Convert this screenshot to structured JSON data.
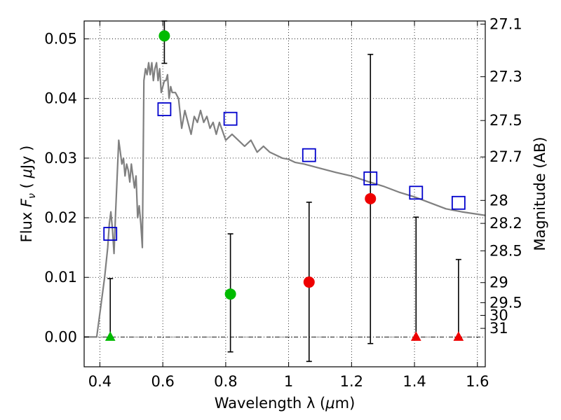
{
  "chart_data": {
    "type": "scatter",
    "xlabel": "Wavelength  λ (μm)",
    "ylabel": "Flux  F_ν  ( μJy )",
    "y2label": "Magnitude (AB)",
    "xlim": [
      0.35,
      1.625
    ],
    "ylim": [
      -0.005,
      0.053
    ],
    "grid": true,
    "x_ticks": [
      "0.4",
      "0.6",
      "0.8",
      "1",
      "1.2",
      "1.4",
      "1.6"
    ],
    "x_tick_values": [
      0.4,
      0.6,
      0.8,
      1.0,
      1.2,
      1.4,
      1.6
    ],
    "y_ticks": [
      "0.00",
      "0.01",
      "0.02",
      "0.03",
      "0.04",
      "0.05"
    ],
    "y_tick_values": [
      0.0,
      0.01,
      0.02,
      0.03,
      0.04,
      0.05
    ],
    "y2_ticks": [
      "27.1",
      "27.3",
      "27.5",
      "27.7",
      "28",
      "28.2",
      "28.5",
      "29",
      "29.5",
      "30",
      "31"
    ],
    "y2_tick_values": [
      27.1,
      27.3,
      27.5,
      27.7,
      28.0,
      28.2,
      28.5,
      29.0,
      29.5,
      30.0,
      31.0
    ],
    "colors": {
      "template": "#808080",
      "model_box": "#0000cc",
      "green": "#00bb00",
      "red": "#ee0000",
      "errorbar": "#000000",
      "zero_line": "#000000"
    },
    "template_sed": {
      "name": "",
      "x": [
        0.35,
        0.39,
        0.395,
        0.405,
        0.415,
        0.425,
        0.43,
        0.435,
        0.44,
        0.445,
        0.45,
        0.455,
        0.46,
        0.465,
        0.47,
        0.475,
        0.48,
        0.485,
        0.49,
        0.495,
        0.5,
        0.505,
        0.51,
        0.515,
        0.52,
        0.525,
        0.53,
        0.535,
        0.54,
        0.545,
        0.55,
        0.555,
        0.56,
        0.565,
        0.57,
        0.575,
        0.58,
        0.585,
        0.59,
        0.595,
        0.6,
        0.605,
        0.61,
        0.615,
        0.62,
        0.625,
        0.63,
        0.64,
        0.65,
        0.66,
        0.67,
        0.68,
        0.69,
        0.7,
        0.71,
        0.72,
        0.73,
        0.74,
        0.75,
        0.76,
        0.77,
        0.78,
        0.8,
        0.82,
        0.84,
        0.86,
        0.88,
        0.9,
        0.92,
        0.94,
        0.96,
        0.98,
        1.0,
        1.02,
        1.05,
        1.1,
        1.15,
        1.2,
        1.25,
        1.3,
        1.35,
        1.4,
        1.45,
        1.5,
        1.55,
        1.6,
        1.625
      ],
      "y": [
        0.0,
        0.0,
        0.002,
        0.006,
        0.01,
        0.015,
        0.019,
        0.021,
        0.018,
        0.014,
        0.021,
        0.027,
        0.033,
        0.031,
        0.029,
        0.03,
        0.027,
        0.029,
        0.028,
        0.026,
        0.029,
        0.027,
        0.025,
        0.027,
        0.02,
        0.022,
        0.019,
        0.015,
        0.043,
        0.045,
        0.044,
        0.046,
        0.044,
        0.046,
        0.043,
        0.045,
        0.046,
        0.043,
        0.045,
        0.041,
        0.042,
        0.043,
        0.043,
        0.044,
        0.04,
        0.042,
        0.041,
        0.041,
        0.04,
        0.035,
        0.038,
        0.036,
        0.034,
        0.037,
        0.036,
        0.038,
        0.036,
        0.037,
        0.035,
        0.036,
        0.034,
        0.036,
        0.033,
        0.034,
        0.033,
        0.032,
        0.033,
        0.031,
        0.032,
        0.031,
        0.0305,
        0.03,
        0.0298,
        0.0293,
        0.029,
        0.0283,
        0.0276,
        0.027,
        0.0261,
        0.0253,
        0.0243,
        0.0235,
        0.0225,
        0.0215,
        0.021,
        0.0206,
        0.0204
      ]
    },
    "model_points": {
      "name": "",
      "x": [
        0.433,
        0.605,
        0.815,
        1.065,
        1.26,
        1.405,
        1.54
      ],
      "y": [
        0.0173,
        0.0382,
        0.0366,
        0.0305,
        0.0266,
        0.0242,
        0.0225
      ]
    },
    "detections": [
      {
        "x": 0.605,
        "y": 0.0505,
        "yerr_low": 0.0046,
        "yerr_high": 0.0025,
        "color": "green"
      },
      {
        "x": 0.815,
        "y": 0.0072,
        "yerr_low": 0.0097,
        "yerr_high": 0.0101,
        "color": "green"
      },
      {
        "x": 1.065,
        "y": 0.0092,
        "yerr_low": 0.0133,
        "yerr_high": 0.0134,
        "color": "red"
      },
      {
        "x": 1.26,
        "y": 0.0232,
        "yerr_low": 0.0243,
        "yerr_high": 0.0242,
        "color": "red"
      }
    ],
    "upper_limits": [
      {
        "x": 0.433,
        "y": 0.0,
        "limit": 0.0098,
        "color": "green"
      },
      {
        "x": 1.405,
        "y": 0.0,
        "limit": 0.0201,
        "color": "red"
      },
      {
        "x": 1.54,
        "y": 0.0,
        "limit": 0.013,
        "color": "red"
      }
    ]
  }
}
